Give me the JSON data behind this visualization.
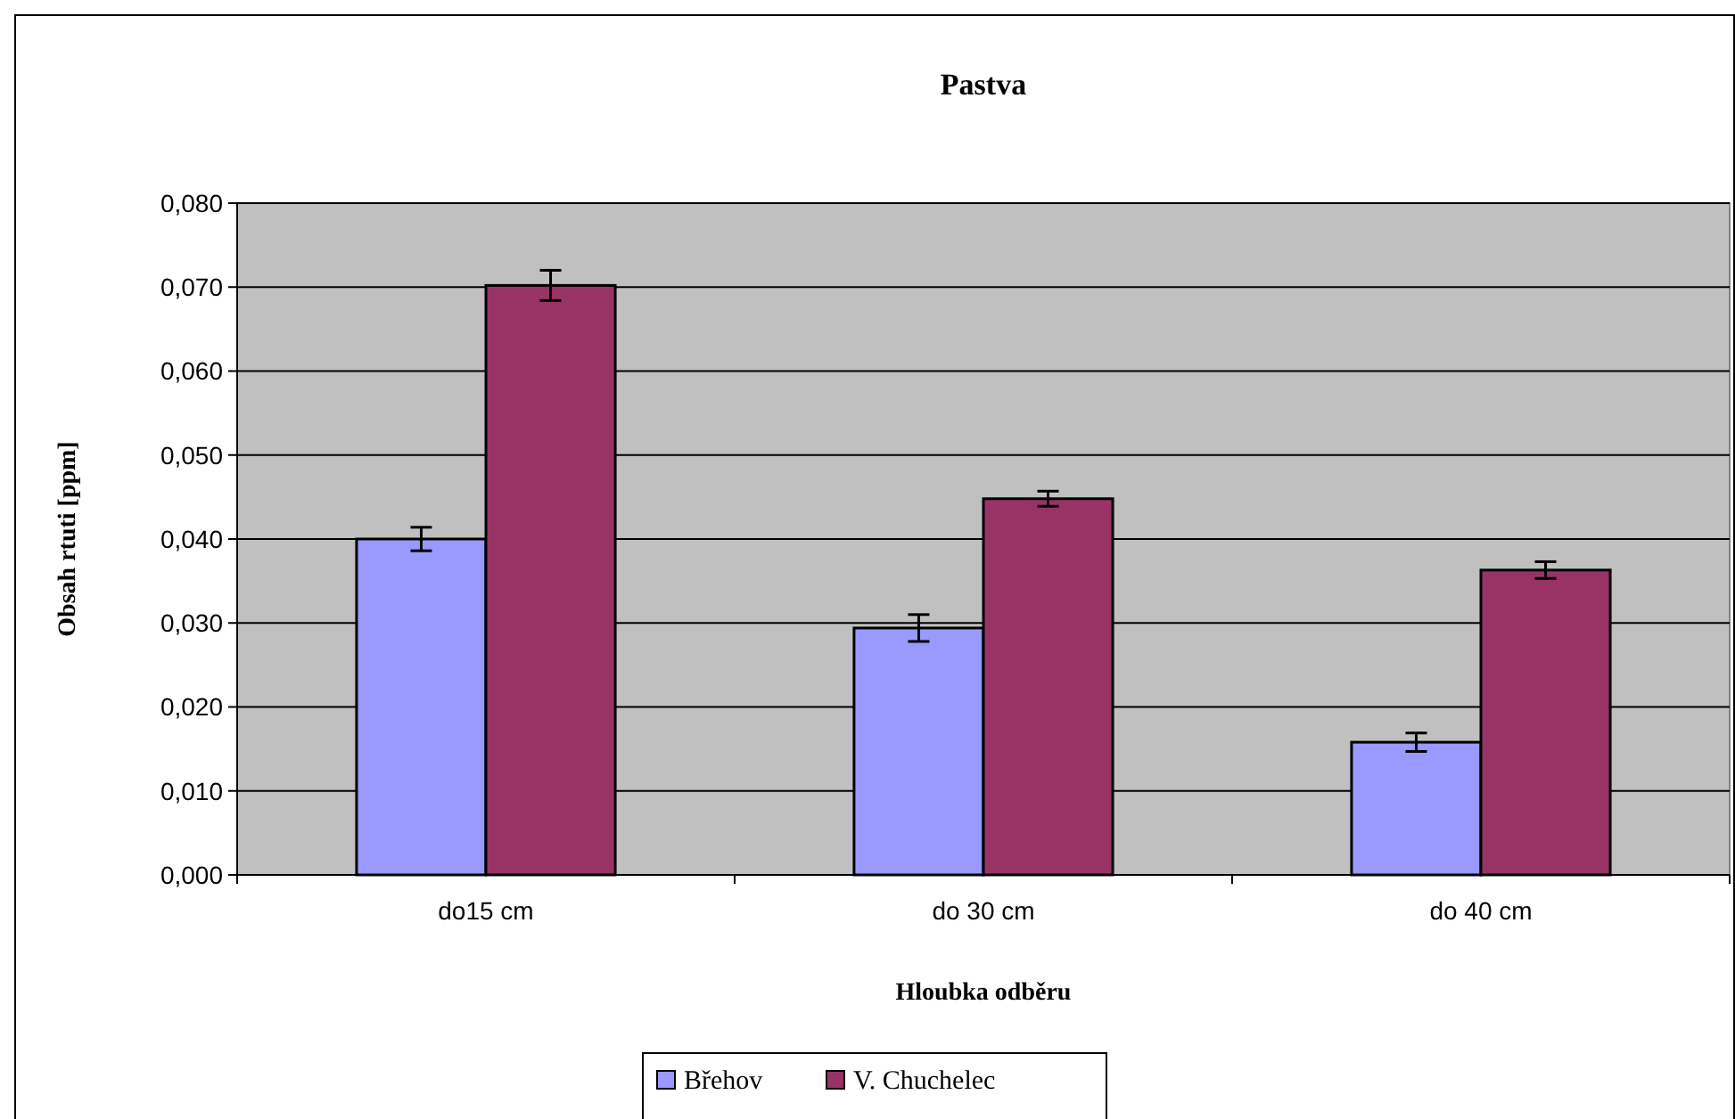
{
  "chart_data": {
    "type": "bar",
    "title": "Pastva",
    "xlabel": "Hloubka odběru",
    "ylabel": "Obsah rtuti [ppm]",
    "categories": [
      "do15 cm",
      "do 30 cm",
      "do 40 cm"
    ],
    "series": [
      {
        "name": "Břehov",
        "color": "#9999ff",
        "values": [
          0.04,
          0.0294,
          0.0158
        ],
        "errors": [
          0.0014,
          0.0016,
          0.0011
        ]
      },
      {
        "name": "V. Chuchelec",
        "color": "#993366",
        "values": [
          0.0702,
          0.0448,
          0.0363
        ],
        "errors": [
          0.0018,
          0.0009,
          0.001
        ]
      }
    ],
    "ylim": [
      0,
      0.08
    ],
    "yticks": [
      {
        "value": 0,
        "label": "0,000"
      },
      {
        "value": 0.01,
        "label": "0,010"
      },
      {
        "value": 0.02,
        "label": "0,020"
      },
      {
        "value": 0.03,
        "label": "0,030"
      },
      {
        "value": 0.04,
        "label": "0,040"
      },
      {
        "value": 0.05,
        "label": "0,050"
      },
      {
        "value": 0.06,
        "label": "0,060"
      },
      {
        "value": 0.07,
        "label": "0,070"
      },
      {
        "value": 0.08,
        "label": "0,080"
      }
    ],
    "grid": "y",
    "legend": "bottom"
  }
}
